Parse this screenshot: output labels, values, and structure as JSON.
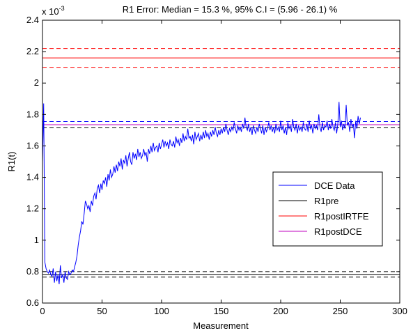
{
  "chart_data": {
    "type": "line",
    "title": "R1 Error: Median = 15.3 %, 95% C.I = (5.96 - 26.1) %",
    "xlabel": "Measurement",
    "ylabel": "R1(t)",
    "exponent_label": "x 10",
    "exponent_power": "-3",
    "xlim": [
      0,
      300
    ],
    "ylim": [
      0.6,
      2.4
    ],
    "scale_factor": 0.001,
    "xticks": [
      "0",
      "50",
      "100",
      "150",
      "200",
      "250",
      "300"
    ],
    "yticks": [
      "0.6",
      "0.8",
      "1",
      "1.2",
      "1.4",
      "1.6",
      "1.8",
      "2",
      "2.2",
      "2.4"
    ],
    "grid": false,
    "legend_position": "center-right",
    "legend": [
      {
        "name": "DCE Data",
        "color": "#0000ff"
      },
      {
        "name": "R1pre",
        "color": "#000000"
      },
      {
        "name": "R1postIRTFE",
        "color": "#ff0000"
      },
      {
        "name": "R1postDCE",
        "color": "#bf00bf"
      }
    ],
    "series": [
      {
        "name": "DCE Data",
        "color": "#0000ff",
        "style": "solid",
        "x_start": 0,
        "x_step": 1,
        "values": [
          1.5,
          1.87,
          0.86,
          0.82,
          0.8,
          0.79,
          0.81,
          0.78,
          0.77,
          0.82,
          0.73,
          0.8,
          0.74,
          0.78,
          0.72,
          0.84,
          0.76,
          0.78,
          0.73,
          0.8,
          0.76,
          0.75,
          0.8,
          0.78,
          0.79,
          0.81,
          0.8,
          0.83,
          0.86,
          0.9,
          0.97,
          1.02,
          1.06,
          1.12,
          1.1,
          1.17,
          1.25,
          1.23,
          1.2,
          1.22,
          1.18,
          1.25,
          1.22,
          1.28,
          1.3,
          1.26,
          1.33,
          1.35,
          1.3,
          1.36,
          1.32,
          1.38,
          1.36,
          1.4,
          1.34,
          1.42,
          1.38,
          1.45,
          1.4,
          1.42,
          1.47,
          1.43,
          1.48,
          1.44,
          1.5,
          1.47,
          1.52,
          1.45,
          1.51,
          1.49,
          1.54,
          1.47,
          1.52,
          1.56,
          1.5,
          1.48,
          1.56,
          1.52,
          1.55,
          1.51,
          1.58,
          1.53,
          1.56,
          1.52,
          1.54,
          1.58,
          1.54,
          1.56,
          1.5,
          1.58,
          1.55,
          1.6,
          1.56,
          1.62,
          1.57,
          1.59,
          1.6,
          1.56,
          1.62,
          1.58,
          1.61,
          1.64,
          1.59,
          1.63,
          1.6,
          1.62,
          1.58,
          1.64,
          1.61,
          1.6,
          1.63,
          1.59,
          1.66,
          1.62,
          1.64,
          1.6,
          1.65,
          1.62,
          1.68,
          1.63,
          1.66,
          1.64,
          1.71,
          1.65,
          1.66,
          1.63,
          1.67,
          1.61,
          1.69,
          1.64,
          1.66,
          1.68,
          1.63,
          1.67,
          1.64,
          1.69,
          1.65,
          1.7,
          1.66,
          1.68,
          1.64,
          1.69,
          1.66,
          1.7,
          1.67,
          1.72,
          1.68,
          1.66,
          1.7,
          1.67,
          1.71,
          1.68,
          1.72,
          1.69,
          1.74,
          1.7,
          1.67,
          1.71,
          1.69,
          1.72,
          1.7,
          1.75,
          1.71,
          1.68,
          1.73,
          1.7,
          1.72,
          1.69,
          1.74,
          1.71,
          1.78,
          1.72,
          1.7,
          1.74,
          1.69,
          1.72,
          1.67,
          1.73,
          1.7,
          1.68,
          1.72,
          1.69,
          1.74,
          1.71,
          1.68,
          1.73,
          1.67,
          1.72,
          1.69,
          1.71,
          1.75,
          1.7,
          1.73,
          1.69,
          1.72,
          1.68,
          1.74,
          1.7,
          1.72,
          1.69,
          1.76,
          1.7,
          1.73,
          1.68,
          1.72,
          1.67,
          1.75,
          1.71,
          1.73,
          1.69,
          1.77,
          1.72,
          1.7,
          1.74,
          1.68,
          1.73,
          1.7,
          1.72,
          1.69,
          1.75,
          1.71,
          1.7,
          1.74,
          1.69,
          1.76,
          1.71,
          1.73,
          1.68,
          1.74,
          1.71,
          1.73,
          1.7,
          1.8,
          1.72,
          1.69,
          1.75,
          1.7,
          1.73,
          1.72,
          1.76,
          1.7,
          1.74,
          1.71,
          1.77,
          1.72,
          1.7,
          1.75,
          1.68,
          1.74,
          1.88,
          1.72,
          1.76,
          1.7,
          1.74,
          1.71,
          1.86,
          1.73,
          1.75,
          1.69,
          1.77,
          1.72,
          1.74,
          1.65,
          1.76,
          1.71,
          1.79,
          1.74,
          1.78
        ]
      },
      {
        "name": "R1pre",
        "color": "#000000",
        "style": "solid",
        "y": 0.78
      },
      {
        "name": "R1pre upper bound",
        "color": "#000000",
        "style": "dashed",
        "y": 0.8
      },
      {
        "name": "R1pre lower bound",
        "color": "#000000",
        "style": "dashed",
        "y": 0.765
      },
      {
        "name": "R1postIRTFE",
        "color": "#ff0000",
        "style": "solid",
        "y": 2.16
      },
      {
        "name": "R1postIRTFE upper bound",
        "color": "#ff0000",
        "style": "dashed",
        "y": 2.22
      },
      {
        "name": "R1postIRTFE lower bound",
        "color": "#ff0000",
        "style": "dashed",
        "y": 2.1
      },
      {
        "name": "R1postDCE",
        "color": "#bf00bf",
        "style": "solid",
        "y": 1.735
      },
      {
        "name": "R1postDCE upper bound (blue)",
        "color": "#0000ff",
        "style": "dashed",
        "y": 1.755
      },
      {
        "name": "R1postDCE lower bound",
        "color": "#000000",
        "style": "dashed",
        "y": 1.715
      }
    ]
  }
}
